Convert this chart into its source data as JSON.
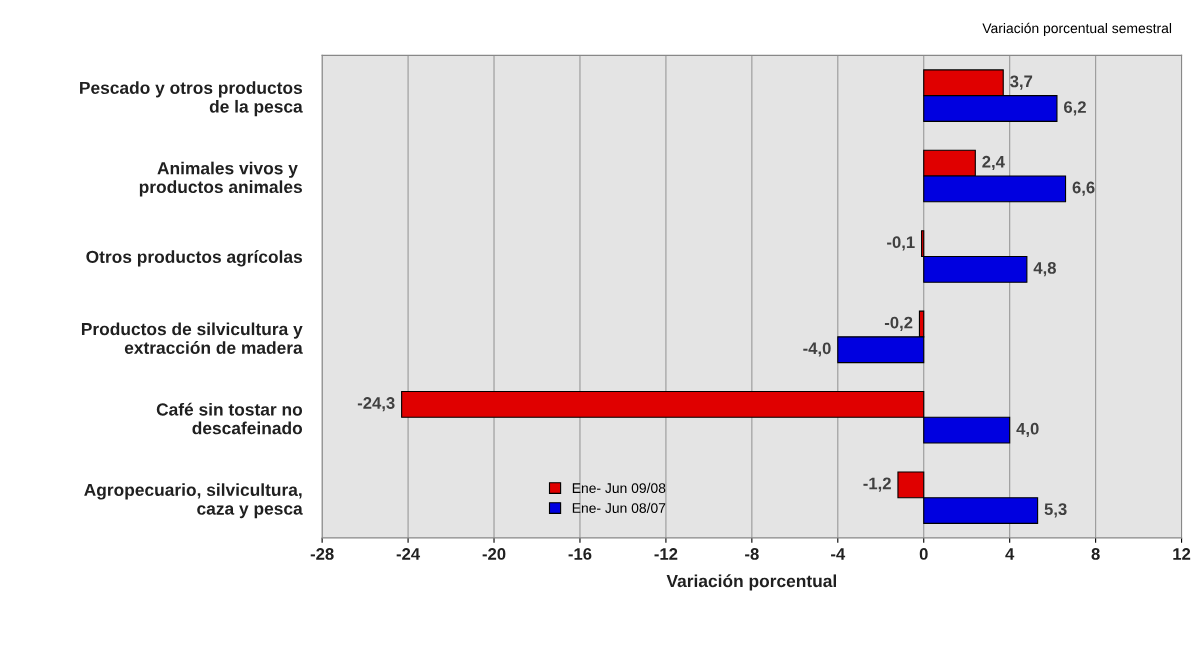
{
  "chart_data": {
    "type": "bar",
    "orientation": "horizontal",
    "subtitle": "Variación porcentual semestral",
    "xlabel": "Variación porcentual",
    "categories": [
      "Pescado y otros productos\nde la pesca",
      "Animales vivos y \nproductos animales",
      "Otros productos agrícolas",
      "Productos de silvicultura y\nextracción de madera",
      "Café sin tostar no\ndescafeinado",
      "Agropecuario, silvicultura,\ncaza y pesca"
    ],
    "series": [
      {
        "name": "Ene- Jun 09/08",
        "color": "#e00000",
        "values": [
          3.7,
          2.4,
          -0.1,
          -0.2,
          -24.3,
          -1.2
        ],
        "value_labels": [
          "3,7",
          "2,4",
          "-0,1",
          "-0,2",
          "-24,3",
          "-1,2"
        ]
      },
      {
        "name": "Ene- Jun 08/07",
        "color": "#0000e0",
        "values": [
          6.2,
          6.6,
          4.8,
          -4.0,
          4.0,
          5.3
        ],
        "value_labels": [
          "6,2",
          "6,6",
          "4,8",
          "-4,0",
          "4,0",
          "5,3"
        ]
      }
    ],
    "xlim": [
      -28,
      12
    ],
    "xticks": [
      -28,
      -24,
      -20,
      -16,
      -12,
      -8,
      -4,
      0,
      4,
      8,
      12
    ],
    "grid": "x",
    "legend": "bottom left"
  }
}
